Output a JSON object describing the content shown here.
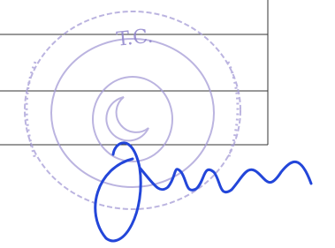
{
  "stamp": {
    "text": "T.C."
  }
}
